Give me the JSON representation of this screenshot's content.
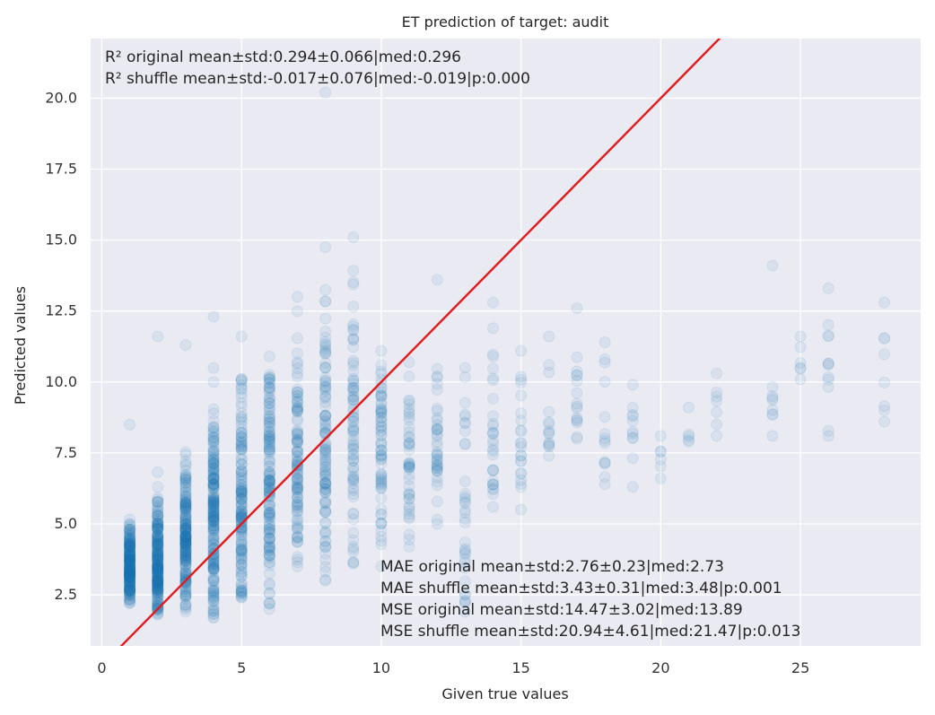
{
  "colors": {
    "plot_background": "#eaeaf2",
    "grid": "#ffffff",
    "points": "#1f77b4",
    "diagonal": "#e31a1c"
  },
  "chart_data": {
    "type": "scatter",
    "title": "ET prediction of target: audit",
    "xlabel": "Given true values",
    "ylabel": "Predicted values",
    "xlim": [
      -0.4,
      29.3
    ],
    "ylim": [
      0.7,
      22.1
    ],
    "xticks": [
      0,
      5,
      10,
      15,
      20,
      25
    ],
    "yticks": [
      2.5,
      5.0,
      7.5,
      10.0,
      12.5,
      15.0,
      17.5,
      20.0
    ],
    "xtick_labels": [
      "0",
      "5",
      "10",
      "15",
      "20",
      "25"
    ],
    "ytick_labels": [
      "2.5",
      "5.0",
      "7.5",
      "10.0",
      "12.5",
      "15.0",
      "17.5",
      "20.0"
    ],
    "grid": true,
    "point_alpha": 0.08,
    "reference_line": {
      "label": "y = x",
      "from": [
        0,
        0
      ],
      "to": [
        30,
        30
      ]
    },
    "point_clouds": [
      {
        "x": 1,
        "y_range": [
          2.2,
          8.5
        ],
        "center": 3.5,
        "count": 220
      },
      {
        "x": 2,
        "y_range": [
          1.8,
          11.6
        ],
        "center": 3.7,
        "count": 230
      },
      {
        "x": 3,
        "y_range": [
          1.9,
          11.3
        ],
        "center": 4.3,
        "count": 200
      },
      {
        "x": 4,
        "y_range": [
          1.7,
          12.3
        ],
        "center": 5.2,
        "count": 210
      },
      {
        "x": 5,
        "y_range": [
          2.4,
          11.6
        ],
        "center": 5.8,
        "count": 160
      },
      {
        "x": 6,
        "y_range": [
          2.0,
          10.9
        ],
        "center": 6.8,
        "count": 150
      },
      {
        "x": 7,
        "y_range": [
          3.5,
          13.0
        ],
        "center": 7.2,
        "count": 110
      },
      {
        "x": 8,
        "y_range": [
          3.0,
          20.2
        ],
        "center": 7.8,
        "count": 110
      },
      {
        "x": 9,
        "y_range": [
          3.6,
          15.1
        ],
        "center": 8.2,
        "count": 80
      },
      {
        "x": 10,
        "y_range": [
          3.5,
          11.1
        ],
        "center": 8.0,
        "count": 70
      },
      {
        "x": 11,
        "y_range": [
          4.2,
          10.7
        ],
        "center": 7.0,
        "count": 45
      },
      {
        "x": 12,
        "y_range": [
          5.0,
          13.6
        ],
        "center": 7.6,
        "count": 40
      },
      {
        "x": 13,
        "y_range": [
          1.9,
          10.5
        ],
        "center": 6.2,
        "count": 35
      },
      {
        "x": 14,
        "y_range": [
          5.6,
          12.8
        ],
        "center": 8.4,
        "count": 30
      },
      {
        "x": 15,
        "y_range": [
          5.5,
          11.1
        ],
        "center": 8.0,
        "count": 22
      },
      {
        "x": 16,
        "y_range": [
          7.4,
          11.6
        ],
        "center": 9.0,
        "count": 14
      },
      {
        "x": 17,
        "y_range": [
          8.0,
          12.6
        ],
        "center": 9.6,
        "count": 16
      },
      {
        "x": 18,
        "y_range": [
          6.4,
          11.4
        ],
        "center": 8.8,
        "count": 14
      },
      {
        "x": 19,
        "y_range": [
          6.3,
          9.9
        ],
        "center": 7.9,
        "count": 11
      },
      {
        "x": 20,
        "y_range": [
          6.6,
          8.1
        ],
        "center": 7.1,
        "count": 6
      },
      {
        "x": 21,
        "y_range": [
          7.9,
          9.1
        ],
        "center": 8.3,
        "count": 5
      },
      {
        "x": 22,
        "y_range": [
          8.1,
          10.3
        ],
        "center": 9.3,
        "count": 7
      },
      {
        "x": 24,
        "y_range": [
          8.1,
          14.1
        ],
        "center": 9.2,
        "count": 9
      },
      {
        "x": 25,
        "y_range": [
          10.1,
          11.6
        ],
        "center": 10.8,
        "count": 6
      },
      {
        "x": 26,
        "y_range": [
          8.1,
          13.3
        ],
        "center": 10.2,
        "count": 12
      },
      {
        "x": 28,
        "y_range": [
          8.6,
          12.8
        ],
        "center": 10.4,
        "count": 8
      }
    ],
    "annotations_top": [
      "R² original mean±std:0.294±0.066|med:0.296",
      "R² shuffle mean±std:-0.017±0.076|med:-0.019|p:0.000"
    ],
    "annotations_bottom": [
      "MAE original mean±std:2.76±0.23|med:2.73",
      "MAE shuffle mean±std:3.43±0.31|med:3.48|p:0.001",
      "MSE original mean±std:14.47±3.02|med:13.89",
      "MSE shuffle mean±std:20.94±4.61|med:21.47|p:0.013"
    ]
  }
}
